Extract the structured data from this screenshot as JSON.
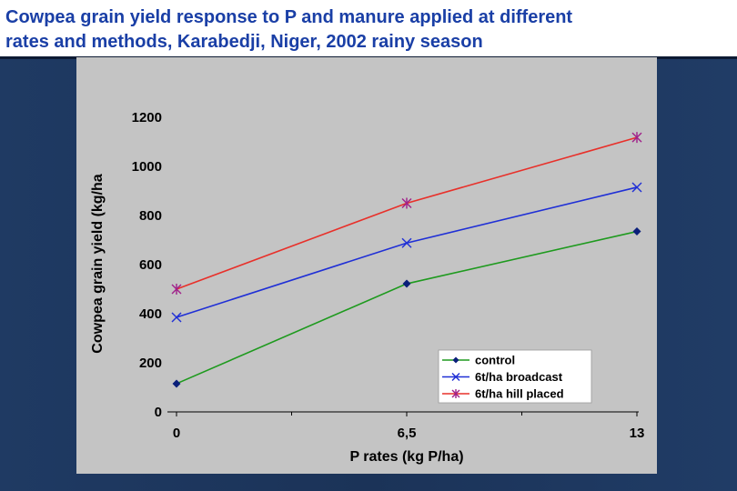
{
  "slide": {
    "title_line1": "Cowpea grain yield response to P and manure applied at different",
    "title_line2": "rates and methods, Karabedji, Niger, 2002 rainy season"
  },
  "chart_data": {
    "type": "line",
    "title": "",
    "xlabel": "P rates (kg P/ha)",
    "ylabel": "Cowpea grain yield (kg/ha",
    "x": [
      0,
      6.5,
      13
    ],
    "x_tick_labels": [
      "0",
      "6,5",
      "13"
    ],
    "xlim": [
      0,
      13
    ],
    "ylim": [
      0,
      1200
    ],
    "y_ticks": [
      0,
      200,
      400,
      600,
      800,
      1000,
      1200
    ],
    "grid": false,
    "legend_position": "bottom-right",
    "series": [
      {
        "name": "control",
        "values": [
          115,
          522,
          735
        ],
        "color": "#1e9a1e",
        "marker": "diamond",
        "marker_color": "#0a1f7a"
      },
      {
        "name": "6t/ha broadcast",
        "values": [
          385,
          688,
          915
        ],
        "color": "#1f2fd6",
        "marker": "x",
        "marker_color": "#1f2fd6"
      },
      {
        "name": "6t/ha hill placed",
        "values": [
          500,
          850,
          1118
        ],
        "color": "#e8302a",
        "marker": "star",
        "marker_color": "#a0208a"
      }
    ]
  }
}
